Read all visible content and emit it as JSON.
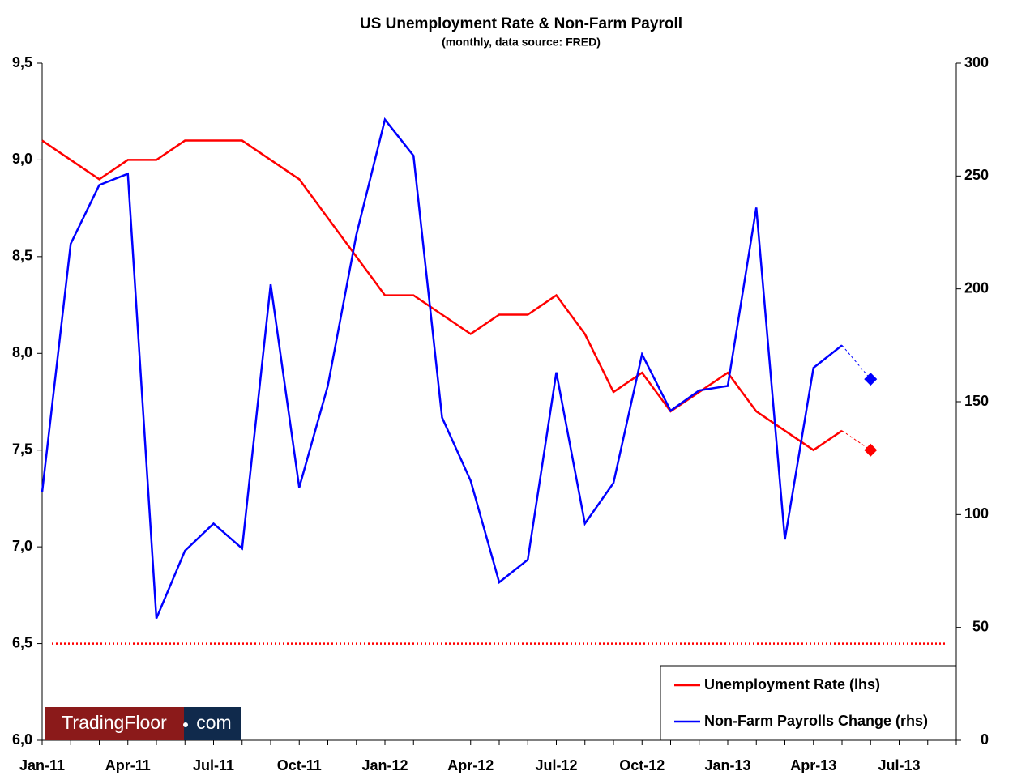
{
  "chart_data": {
    "type": "line",
    "title": "US Unemployment Rate & Non-Farm Payroll",
    "subtitle": "(monthly, data source: FRED)",
    "categories": [
      "Jan-11",
      null,
      null,
      "Apr-11",
      null,
      null,
      "Jul-11",
      null,
      null,
      "Oct-11",
      null,
      null,
      "Jan-12",
      null,
      null,
      "Apr-12",
      null,
      null,
      "Jul-12",
      null,
      null,
      "Oct-12",
      null,
      null,
      "Jan-13",
      null,
      null,
      "Apr-13",
      null,
      null,
      "Jul-13",
      null,
      null
    ],
    "series": [
      {
        "name": "Unemployment Rate (lhs)",
        "color": "#ff0000",
        "axis": "y",
        "values": [
          9.1,
          9.0,
          8.9,
          9.0,
          9.0,
          9.1,
          9.1,
          9.1,
          9.0,
          8.9,
          8.7,
          8.5,
          8.3,
          8.3,
          8.2,
          8.1,
          8.2,
          8.2,
          8.3,
          8.1,
          7.8,
          7.9,
          7.7,
          7.8,
          7.9,
          7.7,
          7.6,
          7.5,
          7.6,
          null,
          null,
          null,
          null
        ],
        "forecast": [
          null,
          null,
          null,
          null,
          null,
          null,
          null,
          null,
          null,
          null,
          null,
          null,
          null,
          null,
          null,
          null,
          null,
          null,
          null,
          null,
          null,
          null,
          null,
          null,
          null,
          null,
          null,
          null,
          null,
          7.5,
          null,
          null,
          null
        ]
      },
      {
        "name": "Non-Farm Payrolls Change (rhs)",
        "color": "#0000ff",
        "axis": "y2",
        "values": [
          110,
          220,
          246,
          251,
          54,
          84,
          96,
          85,
          202,
          112,
          157,
          224,
          275,
          259,
          143,
          115,
          70,
          80,
          163,
          96,
          114,
          171,
          146,
          155,
          157,
          236,
          89,
          165,
          175,
          null,
          null,
          null,
          null
        ],
        "forecast": [
          null,
          null,
          null,
          null,
          null,
          null,
          null,
          null,
          null,
          null,
          null,
          null,
          null,
          null,
          null,
          null,
          null,
          null,
          null,
          null,
          null,
          null,
          null,
          null,
          null,
          null,
          null,
          null,
          null,
          160,
          null,
          null,
          null
        ]
      }
    ],
    "reference_line": {
      "value": 6.5,
      "color": "#ff0000",
      "style": "dotted"
    },
    "ylim": [
      6.0,
      9.5
    ],
    "yticks": [
      {
        "value": 6.0,
        "label": "6,0"
      },
      {
        "value": 6.5,
        "label": "6,5"
      },
      {
        "value": 7.0,
        "label": "7,0"
      },
      {
        "value": 7.5,
        "label": "7,5"
      },
      {
        "value": 8.0,
        "label": "8,0"
      },
      {
        "value": 8.5,
        "label": "8,5"
      },
      {
        "value": 9.0,
        "label": "9,0"
      },
      {
        "value": 9.5,
        "label": "9,5"
      }
    ],
    "y2lim": [
      0,
      300
    ],
    "y2ticks": [
      0,
      50,
      100,
      150,
      200,
      250,
      300
    ],
    "grid": false,
    "legend": "bottom-right",
    "logo": [
      "TradingFloor",
      "com"
    ]
  }
}
